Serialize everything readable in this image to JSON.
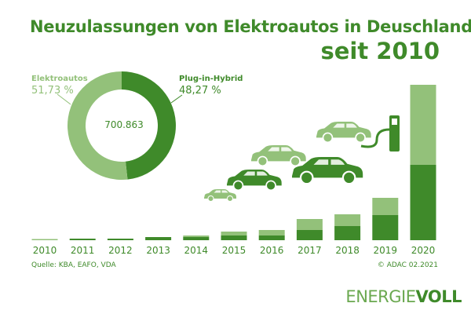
{
  "title": "Neuzulassungen von Elektroautos in Deuschland",
  "subtitle": "seit 2010",
  "donut": {
    "total": "700.863",
    "segments": [
      {
        "name": "Elektroautos",
        "value_label": "51,73 %",
        "value": 51.73,
        "color": "#93c17a"
      },
      {
        "name": "Plug-in-Hybrid",
        "value_label": "48,27 %",
        "value": 48.27,
        "color": "#3f8a2a"
      }
    ]
  },
  "chart_data": {
    "type": "bar",
    "stacked": true,
    "categories": [
      "2010",
      "2011",
      "2012",
      "2013",
      "2014",
      "2015",
      "2016",
      "2017",
      "2018",
      "2019",
      "2020"
    ],
    "series": [
      {
        "color": "#3f8a2a",
        "values": [
          0,
          2,
          2,
          4,
          4,
          6,
          6,
          13,
          18,
          32,
          96
        ]
      },
      {
        "color": "#93c17a",
        "values": [
          1.5,
          0,
          0,
          0,
          2,
          5,
          7,
          14,
          15,
          22,
          102
        ]
      }
    ],
    "yaxis_visible": false,
    "grid": false
  },
  "footer": {
    "source": "Quelle: KBA, EAFO, VDA",
    "copyright": "© ADAC 02.2021"
  },
  "brand": {
    "light": "ENERGIE",
    "bold": "VOLL",
    "light_color": "#6aa84f",
    "bold_color": "#3f8a2a"
  }
}
